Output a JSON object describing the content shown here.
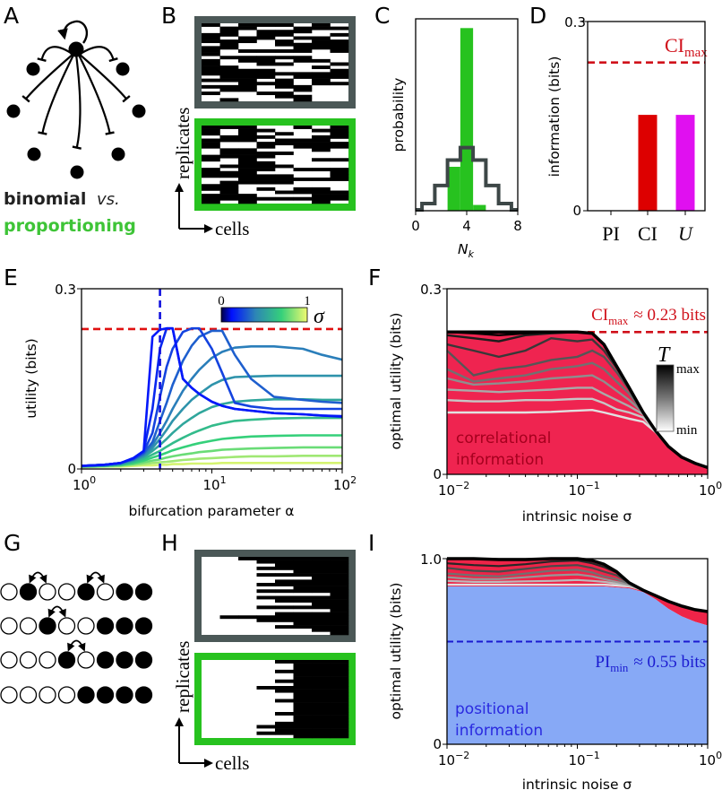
{
  "panel_labels": [
    "A",
    "B",
    "C",
    "D",
    "E",
    "F",
    "G",
    "H",
    "I"
  ],
  "panel_a": {
    "binomial": "binomial",
    "vs": "vs.",
    "proportioning": "proportioning",
    "binomial_color": "#222222",
    "proportioning_color": "#3ec437"
  },
  "panel_b": {
    "ylabel": "replicates",
    "xlabel": "cells",
    "binomial_frame_color": "#4b5857",
    "proportioning_frame_color": "#27c21f"
  },
  "panel_g": {
    "rows": [
      "○●○○●○●●",
      "○○●○○●●●",
      "○○○●○●●●",
      "○○○○●●●●"
    ]
  },
  "panel_h": {
    "ylabel": "replicates",
    "xlabel": "cells"
  },
  "chart_data": [
    {
      "panel": "C",
      "type": "bar",
      "xlabel": "N",
      "xlabel_sub": "k",
      "ylabel": "probability",
      "xlim": [
        0,
        8
      ],
      "ylim": [
        0,
        0.83
      ],
      "xticks": [
        "0",
        "4",
        "8"
      ],
      "series": [
        {
          "style": "bar",
          "color": "#27c21f",
          "x": [
            3,
            4,
            5
          ],
          "values": [
            0.19,
            0.79,
            0.025
          ]
        },
        {
          "style": "step",
          "color": "#3d4747",
          "x": [
            0,
            1,
            2,
            3,
            4,
            5,
            6,
            7,
            8
          ],
          "values": [
            0.004,
            0.031,
            0.109,
            0.219,
            0.273,
            0.219,
            0.109,
            0.031,
            0.004
          ]
        }
      ]
    },
    {
      "panel": "D",
      "type": "bar",
      "ylabel": "information (bits)",
      "ylim": [
        0,
        0.3
      ],
      "yticks": [
        "0",
        "0.3"
      ],
      "categories": [
        "PI",
        "CI",
        "U"
      ],
      "values": [
        0,
        0.152,
        0.152
      ],
      "colors": [
        "#000000",
        "#dd0000",
        "#e010f0"
      ],
      "reference_line": {
        "value": 0.235,
        "label": "CI",
        "label_sub": "max",
        "color": "#d0101a"
      }
    },
    {
      "panel": "E",
      "type": "line",
      "xscale": "log",
      "xlabel": "bifurcation parameter α",
      "ylabel": "utility (bits)",
      "xlim": [
        1,
        100
      ],
      "ylim": [
        0,
        0.3
      ],
      "yticks": [
        "0",
        "0.3"
      ],
      "xticks": [
        {
          "base": "10",
          "exp": "0"
        },
        {
          "base": "10",
          "exp": "1"
        },
        {
          "base": "10",
          "exp": "2"
        }
      ],
      "hline": {
        "value": 0.233,
        "color": "#e01010"
      },
      "vline": {
        "value": 4,
        "color": "#1010dd"
      },
      "colorbar": {
        "label": "σ",
        "min_label": "0",
        "max_label": "1"
      },
      "x": [
        1,
        1.5,
        2,
        2.5,
        3,
        3.5,
        4,
        4.5,
        5,
        6,
        7,
        8,
        10,
        12,
        15,
        20,
        30,
        50,
        70,
        100
      ],
      "series": [
        {
          "sigma": 0.02,
          "values": [
            0.005,
            0.007,
            0.01,
            0.018,
            0.03,
            0.22,
            0.232,
            0.234,
            0.234,
            0.15,
            0.135,
            0.125,
            0.112,
            0.105,
            0.1,
            0.097,
            0.093,
            0.091,
            0.089,
            0.087
          ]
        },
        {
          "sigma": 0.06,
          "values": [
            0.005,
            0.007,
            0.01,
            0.018,
            0.03,
            0.1,
            0.2,
            0.234,
            0.234,
            0.15,
            0.135,
            0.125,
            0.112,
            0.105,
            0.1,
            0.097,
            0.093,
            0.091,
            0.089,
            0.088
          ]
        },
        {
          "sigma": 0.13,
          "values": [
            0.005,
            0.007,
            0.01,
            0.017,
            0.028,
            0.06,
            0.12,
            0.17,
            0.2,
            0.228,
            0.234,
            0.234,
            0.2,
            0.16,
            0.11,
            0.104,
            0.1,
            0.1,
            0.1,
            0.1
          ]
        },
        {
          "sigma": 0.2,
          "values": [
            0.005,
            0.007,
            0.01,
            0.016,
            0.026,
            0.045,
            0.08,
            0.11,
            0.14,
            0.18,
            0.205,
            0.22,
            0.23,
            0.23,
            0.19,
            0.15,
            0.12,
            0.115,
            0.112,
            0.11
          ]
        },
        {
          "sigma": 0.28,
          "values": [
            0.005,
            0.007,
            0.01,
            0.016,
            0.024,
            0.04,
            0.06,
            0.08,
            0.1,
            0.13,
            0.15,
            0.165,
            0.185,
            0.195,
            0.202,
            0.204,
            0.204,
            0.2,
            0.19,
            0.182
          ]
        },
        {
          "sigma": 0.36,
          "values": [
            0.005,
            0.006,
            0.009,
            0.015,
            0.022,
            0.035,
            0.05,
            0.065,
            0.08,
            0.1,
            0.115,
            0.125,
            0.14,
            0.148,
            0.153,
            0.154,
            0.155,
            0.155,
            0.155,
            0.155
          ]
        },
        {
          "sigma": 0.45,
          "values": [
            0.004,
            0.006,
            0.008,
            0.014,
            0.02,
            0.03,
            0.04,
            0.05,
            0.06,
            0.075,
            0.085,
            0.093,
            0.103,
            0.108,
            0.112,
            0.114,
            0.116,
            0.116,
            0.115,
            0.115
          ]
        },
        {
          "sigma": 0.55,
          "values": [
            0.004,
            0.005,
            0.007,
            0.012,
            0.017,
            0.024,
            0.03,
            0.037,
            0.043,
            0.052,
            0.059,
            0.064,
            0.072,
            0.076,
            0.08,
            0.082,
            0.084,
            0.085,
            0.085,
            0.085
          ]
        },
        {
          "sigma": 0.65,
          "values": [
            0.004,
            0.005,
            0.007,
            0.01,
            0.014,
            0.019,
            0.023,
            0.027,
            0.031,
            0.036,
            0.04,
            0.043,
            0.047,
            0.05,
            0.052,
            0.054,
            0.055,
            0.056,
            0.056,
            0.056
          ]
        },
        {
          "sigma": 0.75,
          "values": [
            0.004,
            0.005,
            0.006,
            0.008,
            0.011,
            0.014,
            0.016,
            0.019,
            0.021,
            0.024,
            0.026,
            0.028,
            0.03,
            0.032,
            0.033,
            0.034,
            0.035,
            0.036,
            0.036,
            0.036
          ]
        },
        {
          "sigma": 0.85,
          "values": [
            0.004,
            0.004,
            0.005,
            0.007,
            0.008,
            0.01,
            0.011,
            0.012,
            0.013,
            0.015,
            0.016,
            0.017,
            0.018,
            0.019,
            0.02,
            0.021,
            0.021,
            0.022,
            0.022,
            0.022
          ]
        },
        {
          "sigma": 0.95,
          "values": [
            0.003,
            0.004,
            0.004,
            0.005,
            0.006,
            0.006,
            0.007,
            0.007,
            0.008,
            0.008,
            0.009,
            0.009,
            0.009,
            0.01,
            0.01,
            0.01,
            0.01,
            0.01,
            0.01,
            0.01
          ]
        }
      ]
    },
    {
      "panel": "F",
      "type": "area",
      "xscale": "log",
      "xlabel": "intrinsic noise σ",
      "ylabel": "optimal utility (bits)",
      "xlim": [
        0.01,
        1
      ],
      "ylim": [
        0,
        0.3
      ],
      "yticks": [
        "0",
        "0.3"
      ],
      "xticks": [
        {
          "base": "10",
          "exp": "−2"
        },
        {
          "base": "10",
          "exp": "−1"
        },
        {
          "base": "10",
          "exp": "0"
        }
      ],
      "fill_color": "#ef2450",
      "fill_label": [
        "correlational",
        "information"
      ],
      "fill_label_color": "#a5001e",
      "hline": {
        "value": 0.23,
        "color": "#d0101a",
        "label": "CI",
        "label_sub": "max",
        "label_rest": "≈ 0.23 bits"
      },
      "colorbar": {
        "label": "T",
        "max_label": "max",
        "min_label": "min"
      },
      "x": [
        0.01,
        0.016,
        0.025,
        0.04,
        0.063,
        0.1,
        0.13,
        0.16,
        0.2,
        0.25,
        0.32,
        0.4,
        0.5,
        0.63,
        0.8,
        1
      ],
      "envelope": [
        0.23,
        0.23,
        0.23,
        0.23,
        0.23,
        0.23,
        0.228,
        0.21,
        0.175,
        0.14,
        0.1,
        0.07,
        0.045,
        0.028,
        0.018,
        0.011
      ],
      "series": [
        {
          "T_level": 0.0,
          "values": [
            0.1,
            0.1,
            0.1,
            0.1,
            0.101,
            0.103,
            0.104,
            0.1,
            0.095,
            0.09,
            0.085,
            0.068,
            0.045,
            0.028,
            0.018,
            0.011
          ]
        },
        {
          "T_level": 0.12,
          "values": [
            0.12,
            0.118,
            0.118,
            0.12,
            0.12,
            0.122,
            0.122,
            0.115,
            0.105,
            0.1,
            0.092,
            0.07,
            0.045,
            0.028,
            0.018,
            0.011
          ]
        },
        {
          "T_level": 0.25,
          "values": [
            0.137,
            0.135,
            0.133,
            0.135,
            0.137,
            0.14,
            0.14,
            0.13,
            0.12,
            0.11,
            0.097,
            0.07,
            0.045,
            0.028,
            0.018,
            0.011
          ]
        },
        {
          "T_level": 0.37,
          "values": [
            0.155,
            0.145,
            0.147,
            0.15,
            0.155,
            0.158,
            0.16,
            0.15,
            0.135,
            0.12,
            0.1,
            0.07,
            0.045,
            0.028,
            0.018,
            0.011
          ]
        },
        {
          "T_level": 0.5,
          "values": [
            0.17,
            0.15,
            0.155,
            0.16,
            0.17,
            0.175,
            0.18,
            0.17,
            0.15,
            0.13,
            0.1,
            0.07,
            0.045,
            0.028,
            0.018,
            0.011
          ]
        },
        {
          "T_level": 0.62,
          "values": [
            0.2,
            0.16,
            0.17,
            0.175,
            0.185,
            0.19,
            0.2,
            0.19,
            0.165,
            0.137,
            0.1,
            0.07,
            0.045,
            0.028,
            0.018,
            0.011
          ]
        },
        {
          "T_level": 0.75,
          "values": [
            0.21,
            0.2,
            0.19,
            0.2,
            0.22,
            0.215,
            0.218,
            0.2,
            0.172,
            0.14,
            0.1,
            0.07,
            0.045,
            0.028,
            0.018,
            0.011
          ]
        },
        {
          "T_level": 0.87,
          "values": [
            0.225,
            0.22,
            0.215,
            0.225,
            0.228,
            0.23,
            0.228,
            0.21,
            0.175,
            0.14,
            0.1,
            0.07,
            0.045,
            0.028,
            0.018,
            0.011
          ]
        },
        {
          "T_level": 1.0,
          "values": [
            0.23,
            0.228,
            0.225,
            0.228,
            0.23,
            0.23,
            0.228,
            0.21,
            0.175,
            0.14,
            0.1,
            0.07,
            0.045,
            0.028,
            0.018,
            0.011
          ]
        }
      ]
    },
    {
      "panel": "I",
      "type": "area",
      "xscale": "log",
      "xlabel": "intrinsic noise σ",
      "ylabel": "optimal utility (bits)",
      "xlim": [
        0.01,
        1
      ],
      "ylim": [
        0,
        1.0
      ],
      "yticks": [
        "0",
        "1.0"
      ],
      "xticks": [
        {
          "base": "10",
          "exp": "−2"
        },
        {
          "base": "10",
          "exp": "−1"
        },
        {
          "base": "10",
          "exp": "0"
        }
      ],
      "positional_fill_color": "#87a9f6",
      "correlational_fill_color": "#ee2448",
      "fill_label": [
        "positional",
        "information"
      ],
      "fill_label_color": "#2a2ae0",
      "hline": {
        "value": 0.553,
        "color": "#1a1ad0",
        "label": "PI",
        "label_sub": "min",
        "label_rest": "≈ 0.55 bits"
      },
      "x": [
        0.01,
        0.016,
        0.025,
        0.04,
        0.063,
        0.1,
        0.13,
        0.16,
        0.2,
        0.25,
        0.32,
        0.4,
        0.5,
        0.63,
        0.8,
        1
      ],
      "positional": [
        0.85,
        0.85,
        0.85,
        0.85,
        0.85,
        0.85,
        0.85,
        0.85,
        0.845,
        0.84,
        0.82,
        0.78,
        0.73,
        0.69,
        0.66,
        0.64
      ],
      "envelope": [
        1.0,
        1.0,
        0.995,
        0.995,
        1.0,
        1.0,
        0.99,
        0.97,
        0.93,
        0.87,
        0.83,
        0.8,
        0.77,
        0.745,
        0.725,
        0.715
      ],
      "series": [
        {
          "T_level": 0.0,
          "values": [
            0.86,
            0.86,
            0.86,
            0.86,
            0.86,
            0.86,
            0.86,
            0.86,
            0.855,
            0.85,
            0.83,
            0.8,
            0.77,
            0.745,
            0.725,
            0.715
          ]
        },
        {
          "T_level": 0.17,
          "values": [
            0.88,
            0.875,
            0.875,
            0.878,
            0.88,
            0.885,
            0.88,
            0.875,
            0.865,
            0.855,
            0.83,
            0.8,
            0.77,
            0.745,
            0.725,
            0.715
          ]
        },
        {
          "T_level": 0.33,
          "values": [
            0.9,
            0.89,
            0.89,
            0.9,
            0.91,
            0.915,
            0.905,
            0.89,
            0.875,
            0.86,
            0.83,
            0.8,
            0.77,
            0.745,
            0.725,
            0.715
          ]
        },
        {
          "T_level": 0.5,
          "values": [
            0.92,
            0.91,
            0.905,
            0.92,
            0.935,
            0.94,
            0.925,
            0.905,
            0.89,
            0.865,
            0.83,
            0.8,
            0.77,
            0.745,
            0.725,
            0.715
          ]
        },
        {
          "T_level": 0.67,
          "values": [
            0.95,
            0.935,
            0.93,
            0.945,
            0.96,
            0.965,
            0.95,
            0.93,
            0.91,
            0.87,
            0.83,
            0.8,
            0.77,
            0.745,
            0.725,
            0.715
          ]
        },
        {
          "T_level": 0.83,
          "values": [
            0.975,
            0.965,
            0.96,
            0.97,
            0.985,
            0.99,
            0.975,
            0.955,
            0.925,
            0.87,
            0.83,
            0.8,
            0.77,
            0.745,
            0.725,
            0.715
          ]
        },
        {
          "T_level": 1.0,
          "values": [
            1.0,
            1.0,
            0.995,
            0.995,
            1.0,
            1.0,
            0.99,
            0.97,
            0.93,
            0.87,
            0.83,
            0.8,
            0.77,
            0.745,
            0.725,
            0.715
          ]
        }
      ]
    }
  ]
}
